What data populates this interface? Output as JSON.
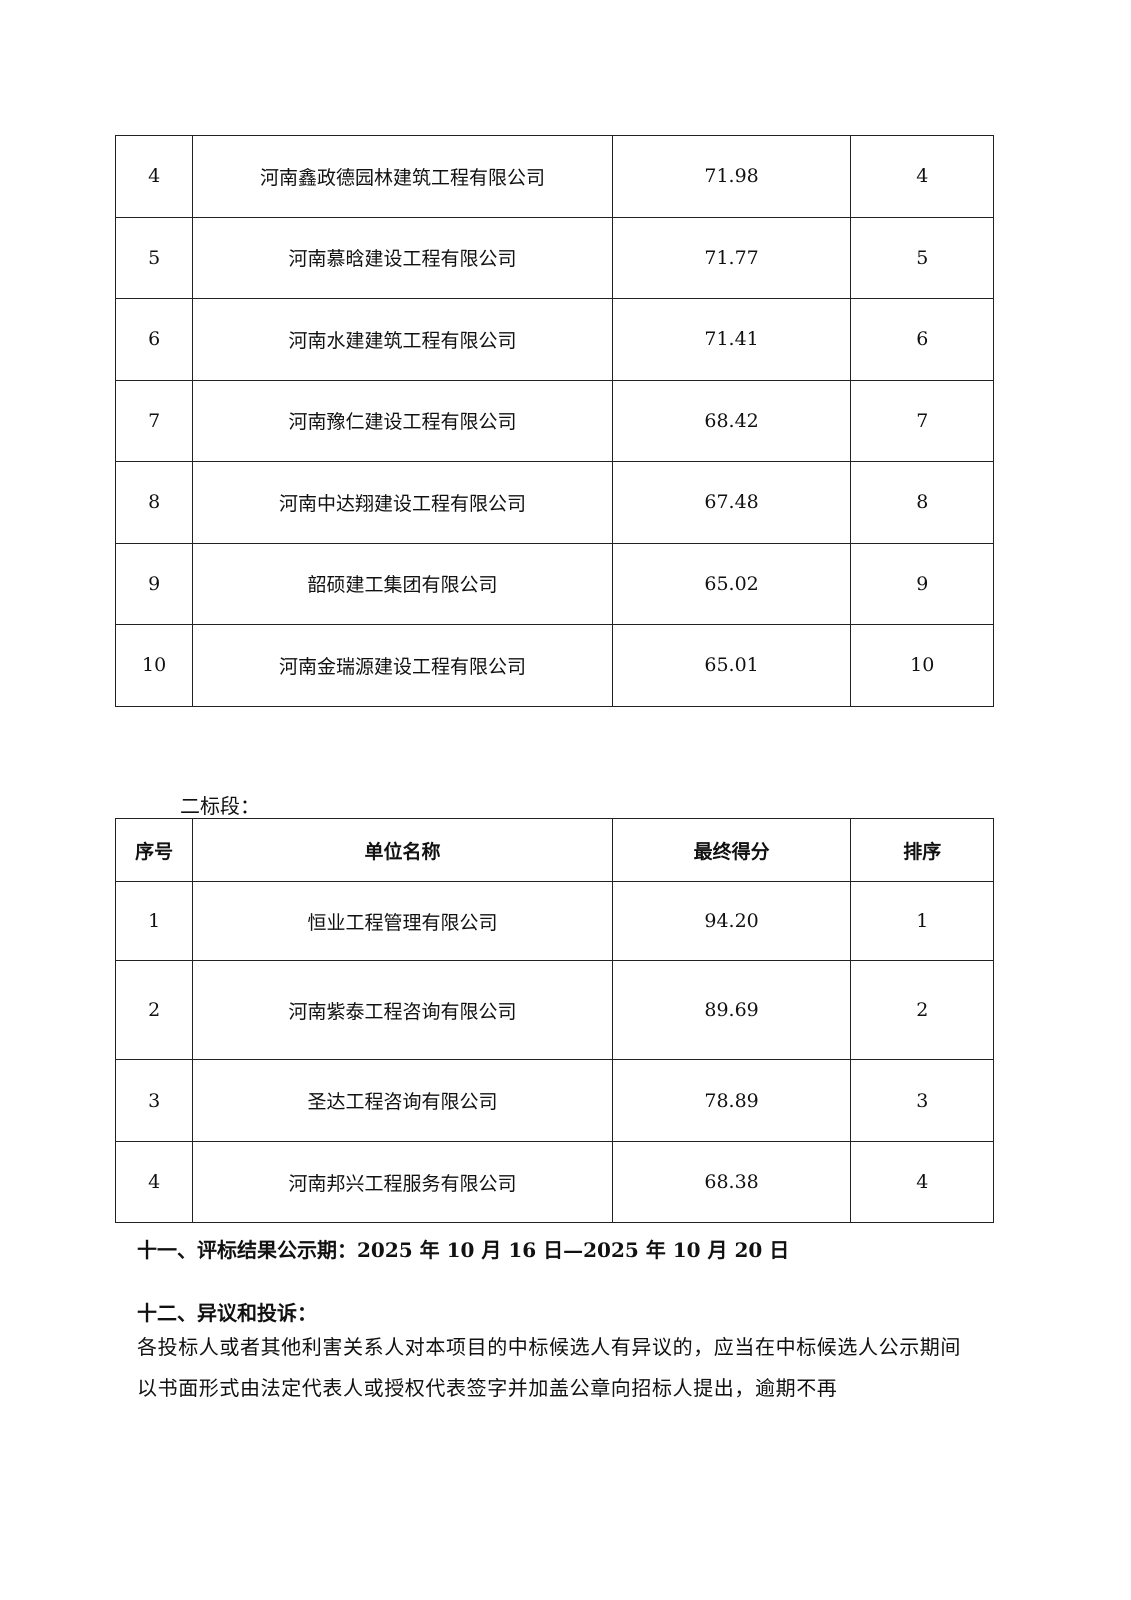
{
  "table1": {
    "rows": [
      {
        "no": "4",
        "name": "河南鑫政德园林建筑工程有限公司",
        "score": "71.98",
        "rank": "4"
      },
      {
        "no": "5",
        "name": "河南慕晗建设工程有限公司",
        "score": "71.77",
        "rank": "5"
      },
      {
        "no": "6",
        "name": "河南水建建筑工程有限公司",
        "score": "71.41",
        "rank": "6"
      },
      {
        "no": "7",
        "name": "河南豫仁建设工程有限公司",
        "score": "68.42",
        "rank": "7"
      },
      {
        "no": "8",
        "name": "河南中达翔建设工程有限公司",
        "score": "67.48",
        "rank": "8"
      },
      {
        "no": "9",
        "name": "韶硕建工集团有限公司",
        "score": "65.02",
        "rank": "9"
      },
      {
        "no": "10",
        "name": "河南金瑞源建设工程有限公司",
        "score": "65.01",
        "rank": "10"
      }
    ]
  },
  "section2_label": "二标段：",
  "table2": {
    "headers": [
      "序号",
      "单位名称",
      "最终得分",
      "排序"
    ],
    "rows": [
      {
        "no": "1",
        "name": "恒业工程管理有限公司",
        "score": "94.20",
        "rank": "1"
      },
      {
        "no": "2",
        "name": "河南紫泰工程咨询有限公司",
        "score": "89.69",
        "rank": "2"
      },
      {
        "no": "3",
        "name": "圣达工程咨询有限公司",
        "score": "78.89",
        "rank": "3"
      },
      {
        "no": "4",
        "name": "河南邦兴工程服务有限公司",
        "score": "68.38",
        "rank": "4"
      }
    ]
  },
  "heading11": "十一、评标结果公示期：2025 年 10 月  16 日—2025 年 10 月  20 日",
  "heading12": "十二、异议和投诉：",
  "paragraph": "各投标人或者其他利害关系人对本项目的中标候选人有异议的，应当在中标候选人公示期间以书面形式由法定代表人或授权代表签字并加盖公章向招标人提出，逾期不再"
}
